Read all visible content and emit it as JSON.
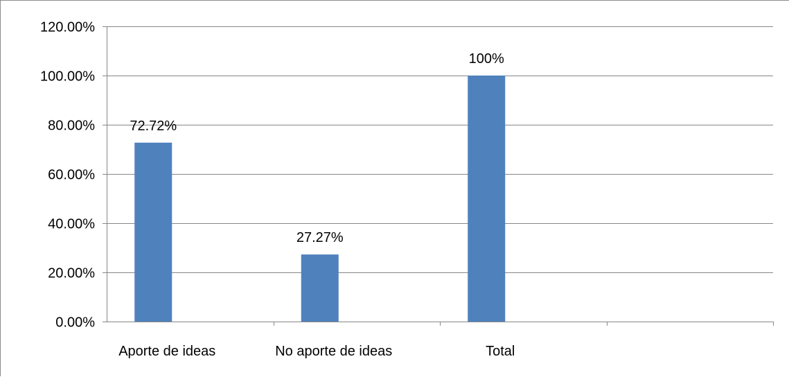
{
  "chart_data": {
    "type": "bar",
    "title": "",
    "xlabel": "",
    "ylabel": "",
    "categories": [
      "Aporte de ideas",
      "No aporte de ideas",
      "Total",
      ""
    ],
    "values": [
      72.72,
      27.27,
      100,
      null
    ],
    "data_labels": [
      "72.72%",
      "27.27%",
      "100%",
      ""
    ],
    "ylim": [
      0,
      120
    ],
    "yticks": [
      0,
      20,
      40,
      60,
      80,
      100,
      120
    ],
    "ytick_labels": [
      "0.00%",
      "20.00%",
      "40.00%",
      "60.00%",
      "80.00%",
      "100.00%",
      "120.00%"
    ],
    "grid": true,
    "legend": "none",
    "bar_color": "#4f81bd",
    "gridline_color": "#868686"
  }
}
